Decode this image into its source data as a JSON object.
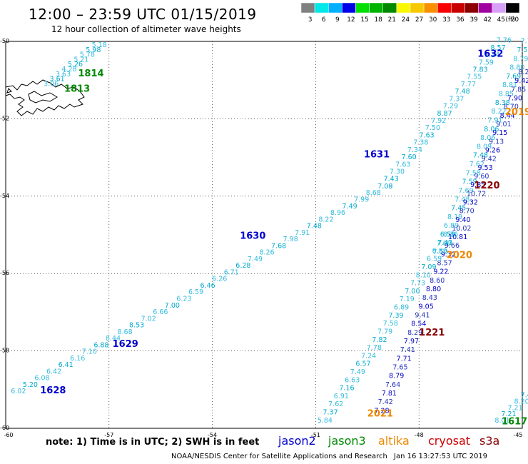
{
  "header": {
    "title": "12:00 – 23:59 UTC 01/15/2019",
    "subtitle": "12 hour collection of altimeter wave heights"
  },
  "colorbar": {
    "unit": "(ft)",
    "bins": [
      {
        "label": "3",
        "color": "#808080"
      },
      {
        "label": "6",
        "color": "#00e8e8"
      },
      {
        "label": "9",
        "color": "#00b0ff"
      },
      {
        "label": "12",
        "color": "#0000e8"
      },
      {
        "label": "15",
        "color": "#00e000"
      },
      {
        "label": "18",
        "color": "#00b400"
      },
      {
        "label": "21",
        "color": "#008800"
      },
      {
        "label": "24",
        "color": "#f8f800"
      },
      {
        "label": "27",
        "color": "#f8c800"
      },
      {
        "label": "30",
        "color": "#f89000"
      },
      {
        "label": "33",
        "color": "#f80000"
      },
      {
        "label": "36",
        "color": "#c80000"
      },
      {
        "label": "39",
        "color": "#8c0000"
      },
      {
        "label": "42",
        "color": "#a000a0"
      },
      {
        "label": "45",
        "color": "#d8a0f8"
      },
      {
        "label": "70",
        "color": "#000000"
      }
    ]
  },
  "axes": {
    "lat_labels": [
      "-50",
      "-52",
      "-54",
      "-56",
      "-58",
      "-60"
    ],
    "lon_labels": [
      "-60",
      "-57",
      "-54",
      "-51",
      "-48",
      "-45"
    ]
  },
  "tracks": [
    {
      "id": "1628",
      "color": "#0000cc",
      "points": [
        [
          "6.02",
          -59.0
        ],
        [
          "5.20",
          -59.6
        ],
        [
          "6.08",
          -60.2
        ],
        [
          "6.42",
          -60.3
        ],
        [
          "6.41",
          -60.8
        ],
        [
          "6.16",
          -61.3
        ],
        [
          "7.10",
          -61.9
        ],
        [
          "6.88",
          -62.3
        ],
        [
          "8.44",
          -62.8
        ],
        [
          "8.68",
          -63.3
        ],
        [
          "8.53",
          -63.9
        ],
        [
          "7.02",
          -64.4
        ],
        [
          "6.66",
          -64.9
        ],
        [
          "7.00",
          -65.4
        ],
        [
          "6.23",
          -65.9
        ],
        [
          "6.59",
          -66.5
        ],
        [
          "6.46",
          -67.0
        ],
        [
          "6.26",
          -67.5
        ],
        [
          "6.71",
          -68.0
        ],
        [
          "6.28",
          -68.5
        ],
        [
          "7.49",
          -69.0
        ],
        [
          "8.26",
          -69.6
        ],
        [
          "7.68",
          -70.1
        ],
        [
          "7.98",
          -70.6
        ],
        [
          "7.91",
          -71.1
        ],
        [
          "7.48",
          -71.6
        ],
        [
          "8.22",
          -72.2
        ],
        [
          "8.96",
          -72.7
        ],
        [
          "7.49",
          -73.2
        ],
        [
          "7.99",
          -73.7
        ],
        [
          "8.68",
          -74.2
        ],
        [
          "7.09",
          -74.8
        ]
      ]
    },
    {
      "id": "1629",
      "color": "#0000cc",
      "points": []
    },
    {
      "id": "1630",
      "color": "#0000cc",
      "points": [
        [
          "7.08",
          -75.3
        ],
        [
          "7.43",
          -75.8
        ],
        [
          "7.30",
          -76.3
        ],
        [
          "7.63",
          -76.9
        ],
        [
          "7.60",
          -77.4
        ],
        [
          "7.34",
          -77.9
        ],
        [
          "7.38",
          -78.4
        ],
        [
          "7.63",
          -79.0
        ],
        [
          "7.50",
          -79.6
        ],
        [
          "7.92",
          -80.1
        ],
        [
          "8.87",
          -80.7
        ],
        [
          "7.29",
          -81.3
        ],
        [
          "7.37",
          -81.8
        ],
        [
          "7.48",
          -82.3
        ],
        [
          "7.77",
          -82.9
        ],
        [
          "7.55",
          -83.4
        ],
        [
          "7.83",
          -83.9
        ],
        [
          "7.59",
          -84.5
        ],
        [
          "8.24",
          -85.0
        ],
        [
          "8.57",
          -85.6
        ],
        [
          "7.76",
          -86.1
        ]
      ]
    },
    {
      "id": "1631",
      "color": "#0000cc",
      "points": []
    },
    {
      "id": "1632",
      "color": "#0000cc",
      "points": []
    },
    {
      "id": "1813",
      "color": "#008800",
      "points": [
        [
          "3.06",
          -48.8
        ],
        [
          "3.61",
          -48.3
        ],
        [
          "3.63",
          -47.9
        ],
        [
          "4.28",
          -47.4
        ],
        [
          "5.26",
          -47.0
        ],
        [
          "5.21",
          -46.6
        ],
        [
          "5.78",
          -46.2
        ],
        [
          "5.98",
          -45.8
        ],
        [
          "5.18",
          -45.4
        ]
      ]
    },
    {
      "id": "1814",
      "color": "#008800",
      "points": []
    },
    {
      "id": "1220",
      "color": "#880000",
      "points": [
        [
          "7.72",
          -86.1
        ],
        [
          "7.59",
          -85.6
        ],
        [
          "8.79",
          -85.2
        ],
        [
          "8.80",
          -84.7
        ],
        [
          "7.69",
          -84.2
        ],
        [
          "8.81",
          -83.8
        ],
        [
          "8.85",
          -83.3
        ],
        [
          "8.38",
          -82.8
        ],
        [
          "8.22",
          -82.4
        ],
        [
          "7.91",
          -81.9
        ],
        [
          "8.06",
          -81.4
        ],
        [
          "8.06",
          -81.0
        ],
        [
          "8.09",
          -80.5
        ],
        [
          "7.48",
          -80.1
        ],
        [
          "7.62",
          -79.6
        ],
        [
          "7.58",
          -79.1
        ],
        [
          "7.59",
          -78.6
        ],
        [
          "7.69",
          -78.2
        ],
        [
          "7.48",
          -77.7
        ],
        [
          "7.45",
          -77.2
        ],
        [
          "8.19",
          -76.7
        ],
        [
          "6.89",
          -76.3
        ],
        [
          "6.58",
          -75.8
        ],
        [
          "7.09",
          -75.3
        ],
        [
          "7.50",
          -74.8
        ]
      ]
    },
    {
      "id": "1221",
      "color": "#880000",
      "points": [
        [
          "9.9",
          -85.6
        ],
        [
          "10.16",
          -85.1
        ],
        [
          "8.21",
          -84.6
        ],
        [
          "9.42",
          -84.1
        ],
        [
          "7.85",
          -83.6
        ],
        [
          "7.90",
          -83.1
        ],
        [
          "8.70",
          -82.6
        ],
        [
          "8.44",
          -82.1
        ],
        [
          "9.01",
          -81.6
        ],
        [
          "9.15",
          -81.2
        ],
        [
          "9.13",
          -80.7
        ],
        [
          "9.26",
          -80.2
        ],
        [
          "9.42",
          -79.7
        ],
        [
          "9.53",
          -79.2
        ],
        [
          "9.60",
          -78.7
        ],
        [
          "9.85",
          -78.2
        ],
        [
          "10.72",
          -77.7
        ],
        [
          "9.32",
          -77.2
        ],
        [
          "8.70",
          -76.7
        ],
        [
          "9.40",
          -76.2
        ],
        [
          "10.02",
          -75.7
        ],
        [
          "10.81",
          -75.2
        ],
        [
          "9.66",
          -74.7
        ],
        [
          "9.32",
          -74.2
        ],
        [
          "8.57",
          -73.7
        ],
        [
          "9.22",
          -73.2
        ],
        [
          "8.60",
          -72.7
        ],
        [
          "8.80",
          -72.2
        ],
        [
          "8.43",
          -71.7
        ],
        [
          "9.05",
          -71.2
        ],
        [
          "9.41",
          -70.7
        ],
        [
          "8.54",
          -70.2
        ],
        [
          "8.29",
          -69.7
        ],
        [
          "7.97",
          -69.2
        ],
        [
          "7.41",
          -68.7
        ],
        [
          "7.71",
          -68.2
        ],
        [
          "7.65",
          -67.7
        ],
        [
          "8.79",
          -67.2
        ],
        [
          "7.64",
          -66.7
        ],
        [
          "7.81",
          -66.2
        ],
        [
          "7.42",
          -65.7
        ],
        [
          "7.28",
          -65.2
        ]
      ]
    },
    {
      "id": "2019",
      "color": "#ee8800",
      "points": []
    },
    {
      "id": "2020",
      "color": "#ee8800",
      "points": []
    },
    {
      "id": "2021",
      "color": "#ee8800",
      "points": [
        [
          "5.84",
          -64.8
        ],
        [
          "7.37",
          -65.3
        ],
        [
          "7.62",
          -65.8
        ],
        [
          "6.91",
          -66.3
        ],
        [
          "7.16",
          -66.8
        ],
        [
          "6.63",
          -67.3
        ],
        [
          "7.49",
          -67.8
        ],
        [
          "6.57",
          -68.3
        ],
        [
          "7.24",
          -68.8
        ],
        [
          "7.78",
          -69.3
        ],
        [
          "7.82",
          -69.8
        ],
        [
          "7.79",
          -70.3
        ],
        [
          "7.58",
          -70.8
        ],
        [
          "7.39",
          -71.3
        ],
        [
          "6.89",
          -71.8
        ],
        [
          "7.19",
          -72.3
        ],
        [
          "7.00",
          -72.8
        ],
        [
          "7.73",
          -73.3
        ],
        [
          "8.10",
          -73.8
        ],
        [
          "7.09",
          -74.3
        ],
        [
          "6.59",
          -74.8
        ],
        [
          "6.89",
          -75.3
        ],
        [
          "7.43",
          -75.8
        ],
        [
          "8.36",
          -76.3
        ]
      ]
    },
    {
      "id": "1617",
      "color": "#008800",
      "points": [
        [
          "8.01",
          -64.5
        ],
        [
          "7.21",
          -64.9
        ],
        [
          "7.21",
          -65.3
        ],
        [
          "8.20",
          -65.7
        ],
        [
          "7.4",
          -66.1
        ]
      ]
    }
  ],
  "track_labels": [
    {
      "id": "1628",
      "color": "#0000cc",
      "lat": -59.1,
      "lon": -59.0
    },
    {
      "id": "1629",
      "color": "#0000cc",
      "lat": -57.9,
      "lon": -56.9
    },
    {
      "id": "1630",
      "color": "#0000cc",
      "lat": -55.1,
      "lon": -53.2
    },
    {
      "id": "1631",
      "color": "#0000cc",
      "lat": -53.0,
      "lon": -49.6
    },
    {
      "id": "1632",
      "color": "#0000cc",
      "lat": -50.4,
      "lon": -46.3
    },
    {
      "id": "1813",
      "color": "#008800",
      "lat": -51.3,
      "lon": -58.3
    },
    {
      "id": "1814",
      "color": "#008800",
      "lat": -50.9,
      "lon": -57.9
    },
    {
      "id": "1220",
      "color": "#880000",
      "lat": -53.8,
      "lon": -46.4
    },
    {
      "id": "1221",
      "color": "#880000",
      "lat": -57.6,
      "lon": -48.0
    },
    {
      "id": "2019",
      "color": "#ee8800",
      "lat": -51.9,
      "lon": -45.5
    },
    {
      "id": "2020",
      "color": "#ee8800",
      "lat": -55.6,
      "lon": -47.2
    },
    {
      "id": "2021",
      "color": "#ee8800",
      "lat": -59.7,
      "lon": -49.5
    },
    {
      "id": "1617",
      "color": "#008800",
      "lat": -59.9,
      "lon": -45.6
    }
  ],
  "note": "note: 1) Time is in UTC; 2) SWH is in feet",
  "satellites": [
    {
      "name": "jason2",
      "color": "#0000cc"
    },
    {
      "name": "jason3",
      "color": "#008800"
    },
    {
      "name": "altika",
      "color": "#ee8800"
    },
    {
      "name": "cryosat",
      "color": "#cc0000"
    },
    {
      "name": "s3a",
      "color": "#880000"
    }
  ],
  "footer": {
    "credit": "NOAA/NESDIS Center for Satellite Applications and Research",
    "timestamp": "Jan 16 13:27:53 UTC 2019"
  }
}
